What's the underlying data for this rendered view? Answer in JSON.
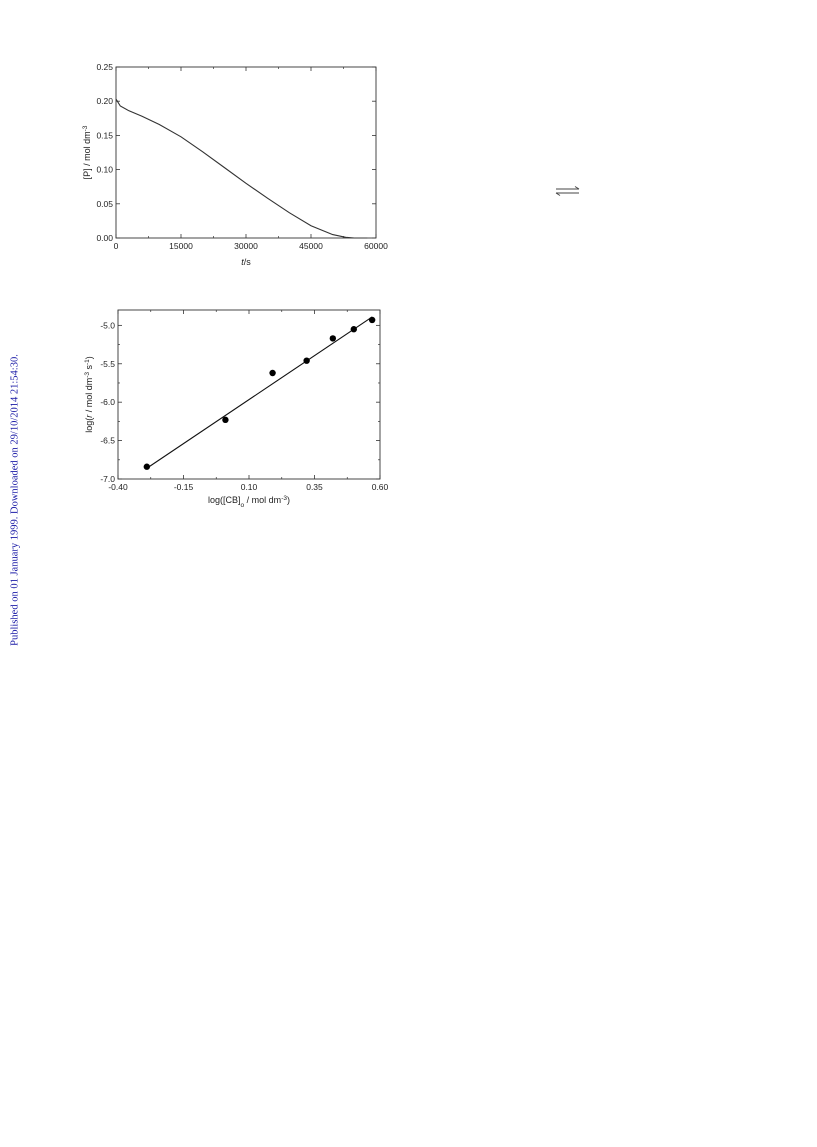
{
  "sidebar": {
    "published_text": "Published on 01 January 1999. Downloaded on 29/10/2014 21:54:30."
  },
  "accent_color": "#1a1aa6",
  "arrow_icon": "equilibrium-arrows-icon",
  "chart_data": [
    {
      "type": "line",
      "xlabel": "t/s",
      "ylabel": "[P] / mol dm⁻³",
      "xlim": [
        0,
        60000
      ],
      "ylim": [
        0,
        0.25
      ],
      "x_ticks": [
        0,
        15000,
        30000,
        45000,
        60000
      ],
      "x_tick_labels": [
        "0",
        "15000",
        "30000",
        "45000",
        "60000"
      ],
      "y_ticks": [
        0,
        0.05,
        0.1,
        0.15,
        0.2,
        0.25
      ],
      "y_tick_labels": [
        "0.00",
        "0.05",
        "0.10",
        "0.15",
        "0.20",
        "0.25"
      ],
      "series": [
        {
          "x": [
            0,
            1000,
            3000,
            6000,
            10000,
            15000,
            20000,
            25000,
            30000,
            35000,
            40000,
            45000,
            50000,
            53000,
            55000,
            57000,
            58000
          ],
          "y": [
            0.203,
            0.193,
            0.186,
            0.178,
            0.166,
            0.148,
            0.126,
            0.103,
            0.08,
            0.058,
            0.037,
            0.018,
            0.005,
            0.001,
            0.0,
            0.0,
            0.0
          ]
        }
      ]
    },
    {
      "type": "scatter",
      "xlabel": "log([CB]₀ / mol dm⁻³)",
      "ylabel": "log(r / mol dm⁻³ s⁻¹)",
      "xlim": [
        -0.4,
        0.6
      ],
      "ylim": [
        -7.0,
        -4.8
      ],
      "x_ticks": [
        -0.4,
        -0.15,
        0.1,
        0.35,
        0.6
      ],
      "x_tick_labels": [
        "-0.40",
        "-0.15",
        "0.10",
        "0.35",
        "0.60"
      ],
      "y_ticks": [
        -7.0,
        -6.5,
        -6.0,
        -5.5,
        -5.0
      ],
      "y_tick_labels": [
        "-7.0",
        "-6.5",
        "-6.0",
        "-5.5",
        "-5.0"
      ],
      "points": {
        "x": [
          -0.29,
          0.01,
          0.19,
          0.32,
          0.42,
          0.5,
          0.57
        ],
        "y": [
          -6.84,
          -6.23,
          -5.62,
          -5.46,
          -5.17,
          -5.05,
          -4.93
        ]
      },
      "fit_line": {
        "x": [
          -0.29,
          0.57
        ],
        "y": [
          -6.86,
          -4.89
        ]
      }
    }
  ]
}
